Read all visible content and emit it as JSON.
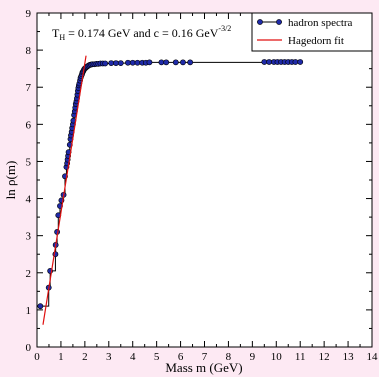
{
  "colors": {
    "page_background": "#fde9f3",
    "plot_background": "#ffffff",
    "spectra": "#000000",
    "marker": "#1f2aa8",
    "fit": "#e01010"
  },
  "chart_data": {
    "type": "line",
    "annotation": {
      "t_prefix": "T",
      "t_sub": "H",
      "middle": " = 0.174 GeV and c = 0.16 GeV",
      "c_sup": "-3/2"
    },
    "xlabel": "Mass m (GeV)",
    "ylabel": "ln ρ(m)",
    "xlim": [
      0,
      14
    ],
    "ylim": [
      0,
      9
    ],
    "x_ticks": [
      "0",
      "1",
      "2",
      "3",
      "4",
      "5",
      "6",
      "7",
      "8",
      "9",
      "10",
      "11",
      "12",
      "13",
      "14"
    ],
    "y_ticks": [
      "0",
      "1",
      "2",
      "3",
      "4",
      "5",
      "6",
      "7",
      "8",
      "9"
    ],
    "legend_position": "top-right",
    "series": [
      {
        "name": "hadron spectra",
        "style": "step-line-with-circle-markers",
        "x": [
          0.14,
          0.49,
          0.55,
          0.77,
          0.78,
          0.84,
          0.89,
          0.96,
          1.02,
          1.11,
          1.17,
          1.23,
          1.26,
          1.28,
          1.3,
          1.32,
          1.37,
          1.4,
          1.42,
          1.45,
          1.47,
          1.5,
          1.52,
          1.55,
          1.58,
          1.6,
          1.62,
          1.65,
          1.67,
          1.69,
          1.71,
          1.73,
          1.75,
          1.77,
          1.8,
          1.82,
          1.85,
          1.88,
          1.9,
          1.93,
          1.96,
          1.99,
          2.03,
          2.06,
          2.1,
          2.15,
          2.2,
          2.26,
          2.32,
          2.4,
          2.48,
          2.56,
          2.65,
          2.75,
          2.85,
          3.1,
          3.3,
          3.5,
          3.8,
          4.0,
          4.2,
          4.4,
          4.55,
          4.7,
          5.2,
          5.4,
          5.8,
          6.1,
          6.4,
          9.5,
          9.7,
          9.9,
          10.05,
          10.2,
          10.35,
          10.5,
          10.65,
          10.8,
          11.0
        ],
        "y": [
          1.1,
          1.6,
          2.05,
          2.5,
          2.75,
          3.1,
          3.55,
          3.8,
          3.95,
          4.1,
          4.6,
          4.85,
          4.95,
          5.05,
          5.15,
          5.25,
          5.45,
          5.6,
          5.7,
          5.8,
          5.9,
          6.0,
          6.1,
          6.25,
          6.35,
          6.45,
          6.55,
          6.62,
          6.7,
          6.8,
          6.9,
          6.98,
          7.05,
          7.1,
          7.18,
          7.25,
          7.3,
          7.35,
          7.4,
          7.43,
          7.47,
          7.5,
          7.52,
          7.54,
          7.56,
          7.58,
          7.6,
          7.61,
          7.62,
          7.62,
          7.63,
          7.63,
          7.64,
          7.64,
          7.64,
          7.65,
          7.65,
          7.65,
          7.66,
          7.66,
          7.66,
          7.66,
          7.66,
          7.67,
          7.67,
          7.67,
          7.67,
          7.67,
          7.67,
          7.68,
          7.68,
          7.68,
          7.68,
          7.68,
          7.68,
          7.68,
          7.68,
          7.68,
          7.68
        ]
      },
      {
        "name": "Hagedorn fit",
        "style": "line",
        "x": [
          0.25,
          2.05
        ],
        "y": [
          0.6,
          7.85
        ]
      }
    ]
  }
}
